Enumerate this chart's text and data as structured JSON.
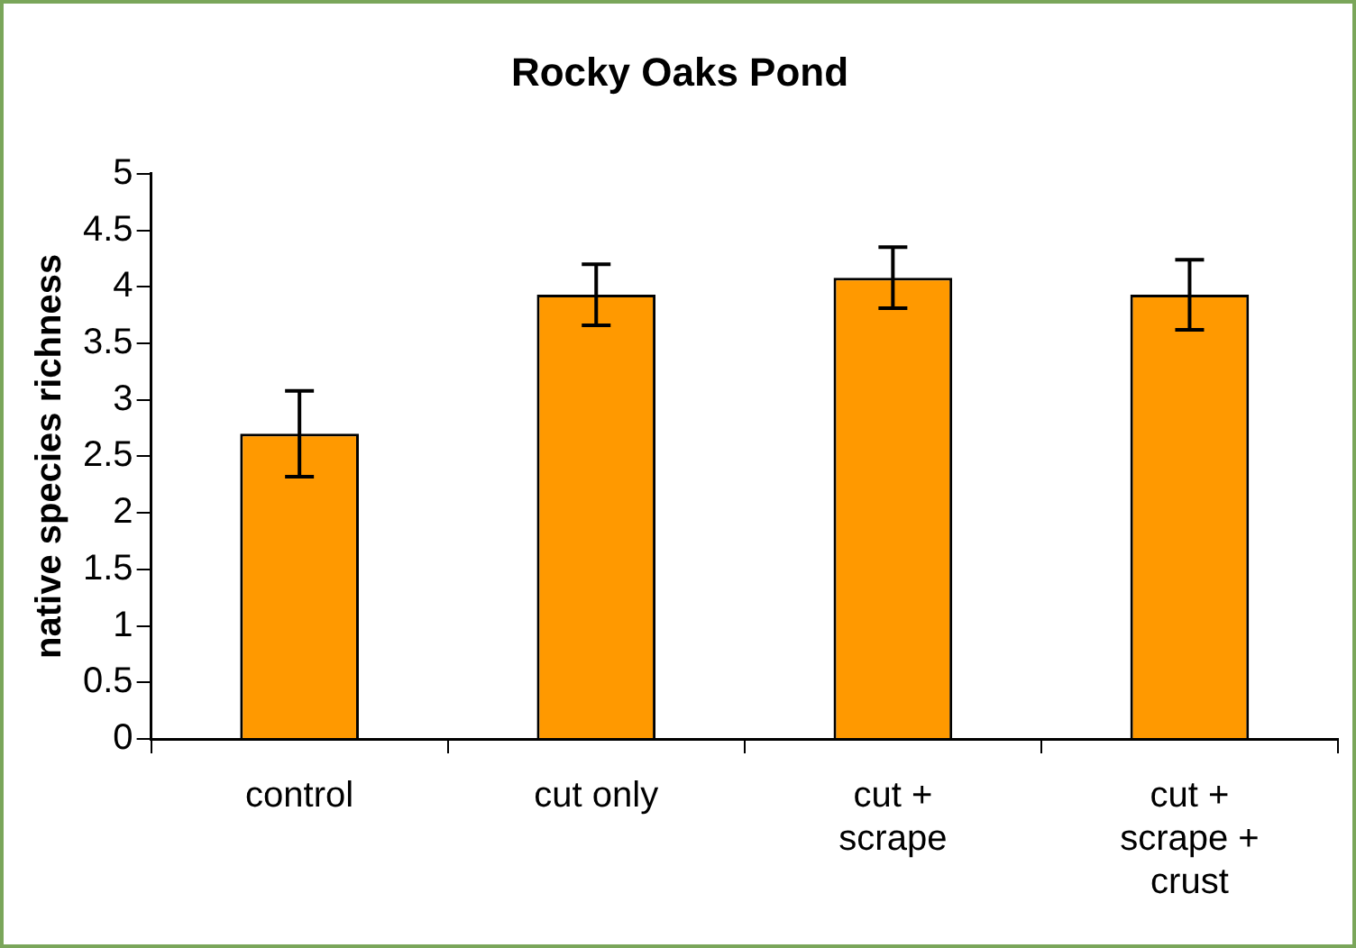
{
  "chart_data": {
    "type": "bar",
    "title": "Rocky Oaks Pond",
    "ylabel": "native species richness",
    "categories": [
      "control",
      "cut only",
      "cut + scrape",
      "cut + scrape + crust"
    ],
    "values": [
      2.7,
      3.93,
      4.08,
      3.93
    ],
    "errors": [
      0.38,
      0.27,
      0.27,
      0.31
    ],
    "color": "#ff9900",
    "ylim": [
      0,
      5
    ],
    "yticks": [
      0,
      0.5,
      1,
      1.5,
      2,
      2.5,
      3,
      3.5,
      4,
      4.5,
      5
    ],
    "grid": false,
    "legend": false
  }
}
